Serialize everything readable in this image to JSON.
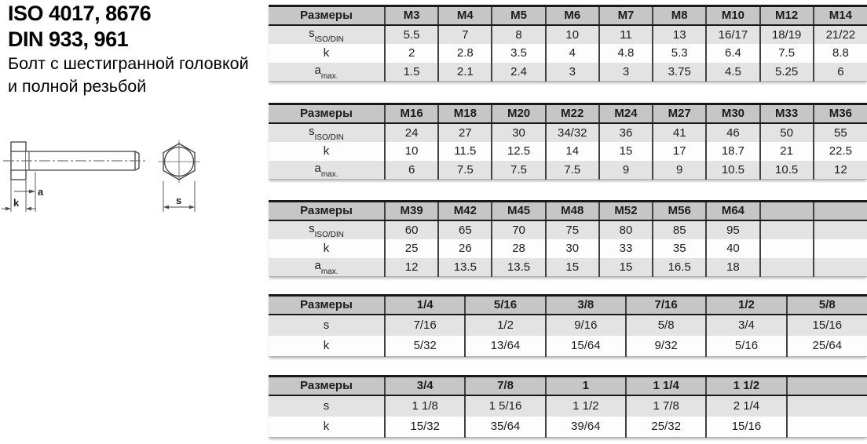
{
  "page": {
    "title_line1": "ISO 4017, 8676",
    "title_line2": "DIN 933, 961",
    "subtitle_line1": "Болт с шестигранной головкой",
    "subtitle_line2": "и полной резьбой"
  },
  "drawing": {
    "dim_a_label": "a",
    "dim_k_label": "k",
    "dim_s_label": "s"
  },
  "colors": {
    "header_bg": "#c6c6c6",
    "row_shaded_bg": "#e3e3e3",
    "row_plain_bg": "#fdfdfd",
    "border_dark": "#181818",
    "grid_line": "#414141"
  },
  "tables": [
    {
      "corner_label": "Размеры",
      "columns": [
        "M3",
        "M4",
        "M5",
        "M6",
        "M7",
        "M8",
        "M10",
        "M12",
        "M14"
      ],
      "rows": [
        {
          "label_base": "s",
          "label_sub": "ISO/DIN",
          "shaded": true,
          "values": [
            "5.5",
            "7",
            "8",
            "10",
            "11",
            "13",
            "16/17",
            "18/19",
            "21/22"
          ]
        },
        {
          "label_base": "k",
          "label_sub": "",
          "shaded": false,
          "values": [
            "2",
            "2.8",
            "3.5",
            "4",
            "4.8",
            "5.3",
            "6.4",
            "7.5",
            "8.8"
          ]
        },
        {
          "label_base": "a",
          "label_sub": "max.",
          "shaded": true,
          "values": [
            "1.5",
            "2.1",
            "2.4",
            "3",
            "3",
            "3.75",
            "4.5",
            "5.25",
            "6"
          ]
        }
      ]
    },
    {
      "corner_label": "Размеры",
      "columns": [
        "M16",
        "M18",
        "M20",
        "M22",
        "M24",
        "M27",
        "M30",
        "M33",
        "M36"
      ],
      "rows": [
        {
          "label_base": "s",
          "label_sub": "ISO/DIN",
          "shaded": true,
          "values": [
            "24",
            "27",
            "30",
            "34/32",
            "36",
            "41",
            "46",
            "50",
            "55"
          ]
        },
        {
          "label_base": "k",
          "label_sub": "",
          "shaded": false,
          "values": [
            "10",
            "11.5",
            "12.5",
            "14",
            "15",
            "17",
            "18.7",
            "21",
            "22.5"
          ]
        },
        {
          "label_base": "a",
          "label_sub": "max.",
          "shaded": true,
          "values": [
            "6",
            "7.5",
            "7.5",
            "7.5",
            "9",
            "9",
            "10.5",
            "10.5",
            "12"
          ]
        }
      ]
    },
    {
      "corner_label": "Размеры",
      "columns": [
        "M39",
        "M42",
        "M45",
        "M48",
        "M52",
        "M56",
        "M64",
        "",
        ""
      ],
      "rows": [
        {
          "label_base": "s",
          "label_sub": "ISO/DIN",
          "shaded": true,
          "values": [
            "60",
            "65",
            "70",
            "75",
            "80",
            "85",
            "95",
            "",
            ""
          ]
        },
        {
          "label_base": "k",
          "label_sub": "",
          "shaded": false,
          "values": [
            "25",
            "26",
            "28",
            "30",
            "33",
            "35",
            "40",
            "",
            ""
          ]
        },
        {
          "label_base": "a",
          "label_sub": "max.",
          "shaded": true,
          "values": [
            "12",
            "13.5",
            "13.5",
            "15",
            "15",
            "16.5",
            "18",
            "",
            ""
          ]
        }
      ]
    },
    {
      "corner_label": "Размеры",
      "columns": [
        "1/4",
        "5/16",
        "3/8",
        "7/16",
        "1/2",
        "5/8"
      ],
      "rows": [
        {
          "label_base": "s",
          "label_sub": "",
          "shaded": true,
          "values": [
            "7/16",
            "1/2",
            "9/16",
            "5/8",
            "3/4",
            "15/16"
          ]
        },
        {
          "label_base": "k",
          "label_sub": "",
          "shaded": false,
          "values": [
            "5/32",
            "13/64",
            "15/64",
            "9/32",
            "5/16",
            "25/64"
          ]
        }
      ]
    },
    {
      "corner_label": "Размеры",
      "columns": [
        "3/4",
        "7/8",
        "1",
        "1 1/4",
        "1 1/2",
        ""
      ],
      "rows": [
        {
          "label_base": "s",
          "label_sub": "",
          "shaded": true,
          "values": [
            "1 1/8",
            "1 5/16",
            "1 1/2",
            "1 7/8",
            "2 1/4",
            ""
          ]
        },
        {
          "label_base": "k",
          "label_sub": "",
          "shaded": false,
          "values": [
            "15/32",
            "35/64",
            "39/64",
            "25/32",
            "15/16",
            ""
          ]
        }
      ]
    }
  ]
}
